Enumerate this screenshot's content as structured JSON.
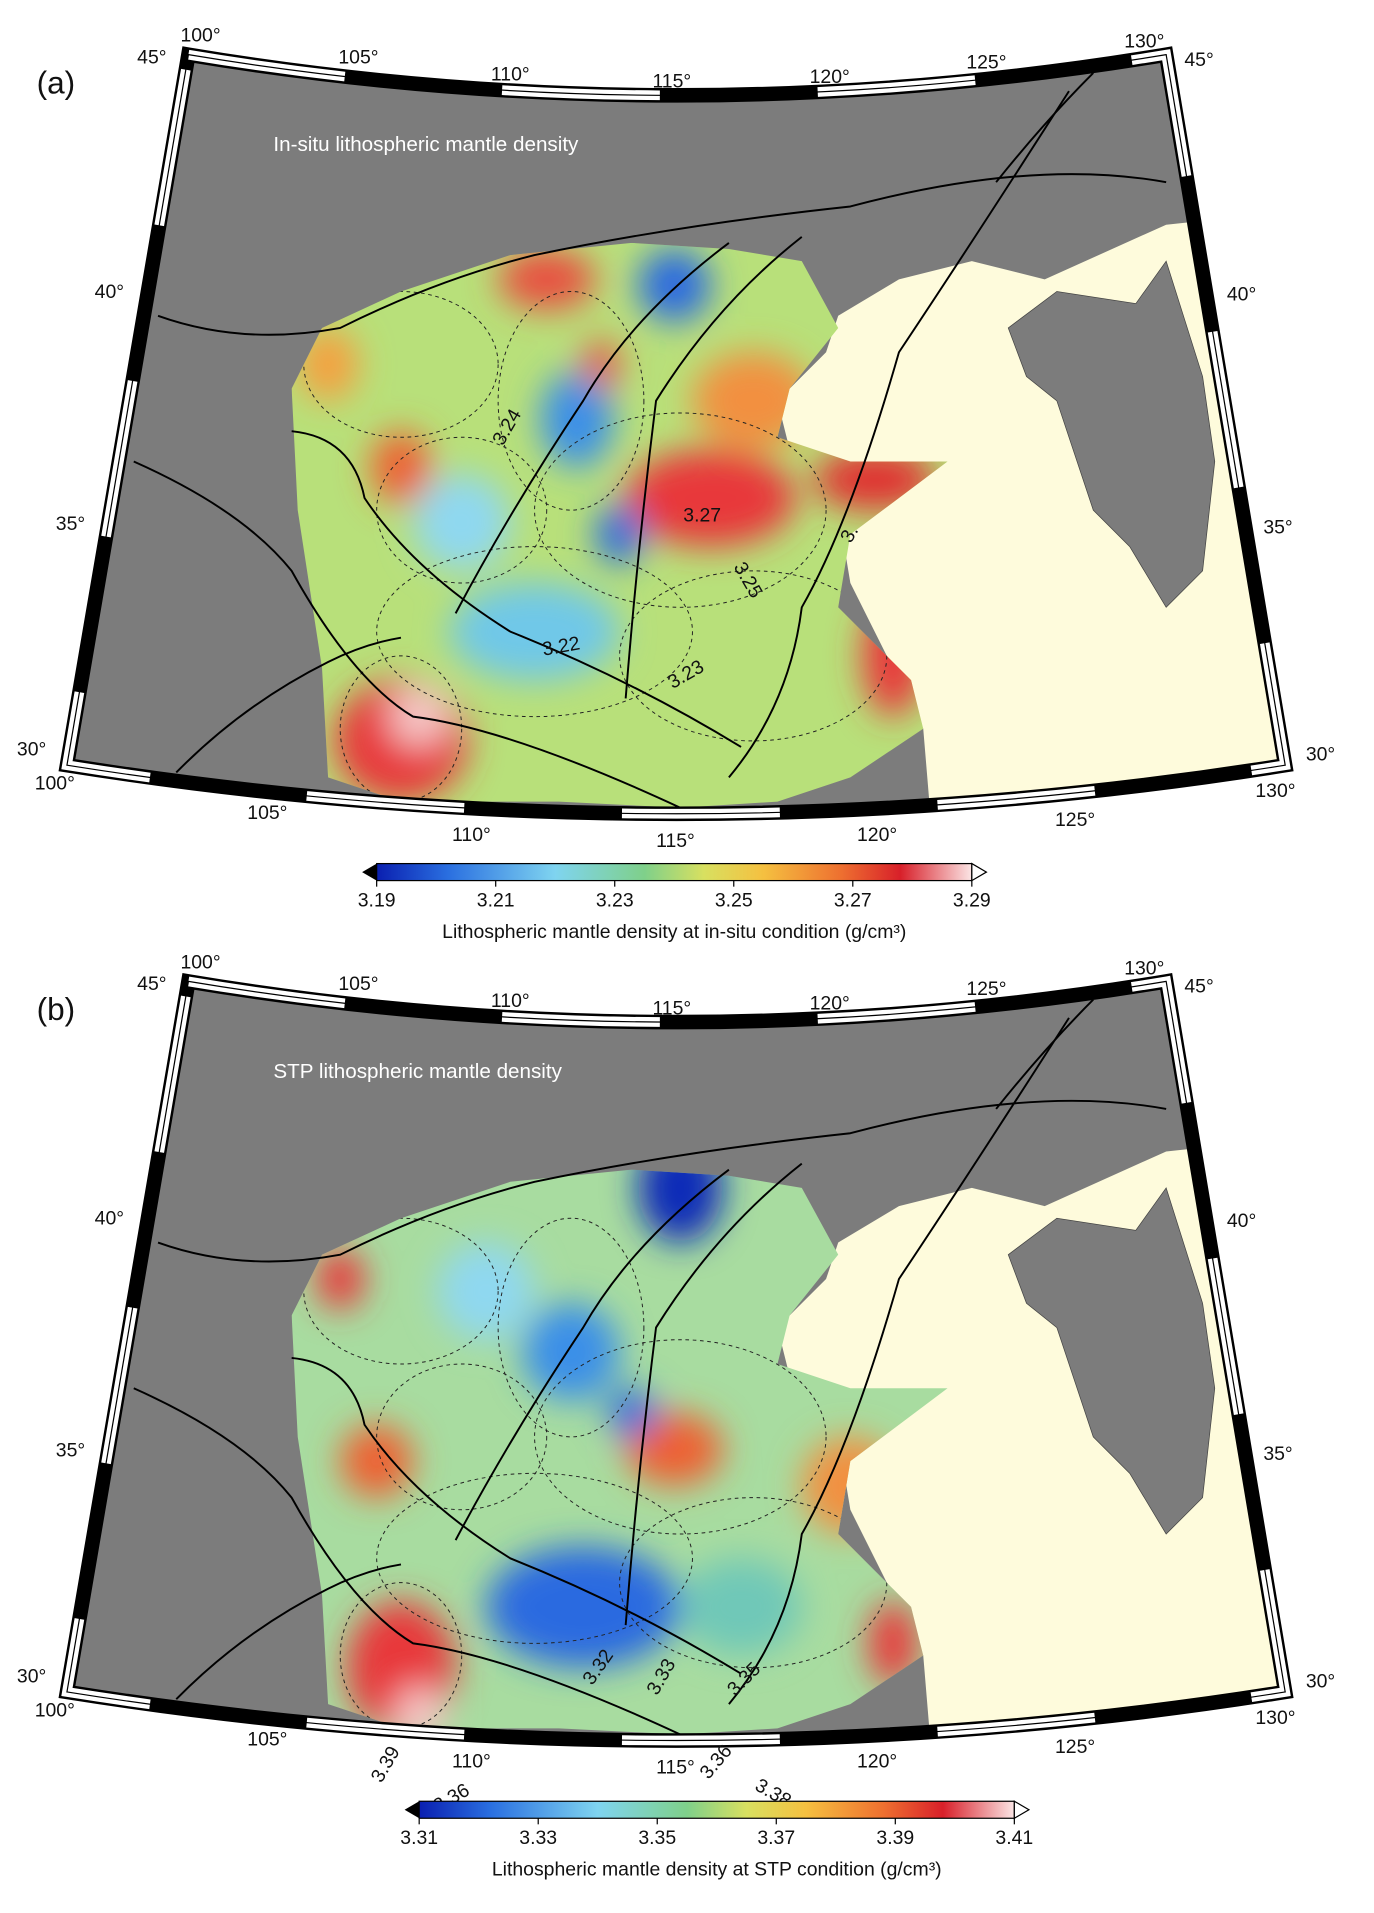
{
  "panels": [
    {
      "label": "(a)",
      "title": "In-situ lithospheric mantle density",
      "lon_top": [
        "100°",
        "105°",
        "110°",
        "115°",
        "120°",
        "125°",
        "130°"
      ],
      "lon_bottom": [
        "100°",
        "105°",
        "110°",
        "115°",
        "120°",
        "125°",
        "130°"
      ],
      "lat_left": [
        "45°",
        "40°",
        "35°",
        "30°"
      ],
      "lat_right": [
        "45°",
        "40°",
        "35°",
        "30°"
      ],
      "contour_labels": [
        "3.24",
        "3.27",
        "3.",
        "3.25",
        "3.22",
        "3.23"
      ],
      "colorbar": {
        "range": [
          3.19,
          3.29
        ],
        "ticks": [
          3.19,
          3.21,
          3.23,
          3.25,
          3.27,
          3.29
        ],
        "label": "Lithospheric mantle density at in-situ condition (g/cm³)"
      }
    },
    {
      "label": "(b)",
      "title": "STP lithospheric mantle density",
      "lon_top": [
        "100°",
        "105°",
        "110°",
        "115°",
        "120°",
        "125°",
        "130°"
      ],
      "lon_bottom": [
        "100°",
        "105°",
        "110°",
        "115°",
        "120°",
        "125°",
        "130°"
      ],
      "lat_left": [
        "45°",
        "40°",
        "35°",
        "30°"
      ],
      "lat_right": [
        "45°",
        "40°",
        "35°",
        "30°"
      ],
      "contour_labels": [
        "3.36",
        "3.39",
        "3.36",
        "3.38",
        "3.32",
        "3.33",
        "3.35"
      ],
      "colorbar": {
        "range": [
          3.31,
          3.41
        ],
        "ticks": [
          3.31,
          3.33,
          3.35,
          3.37,
          3.39,
          3.41
        ],
        "label": "Lithospheric mantle density at STP condition (g/cm³)"
      }
    }
  ]
}
